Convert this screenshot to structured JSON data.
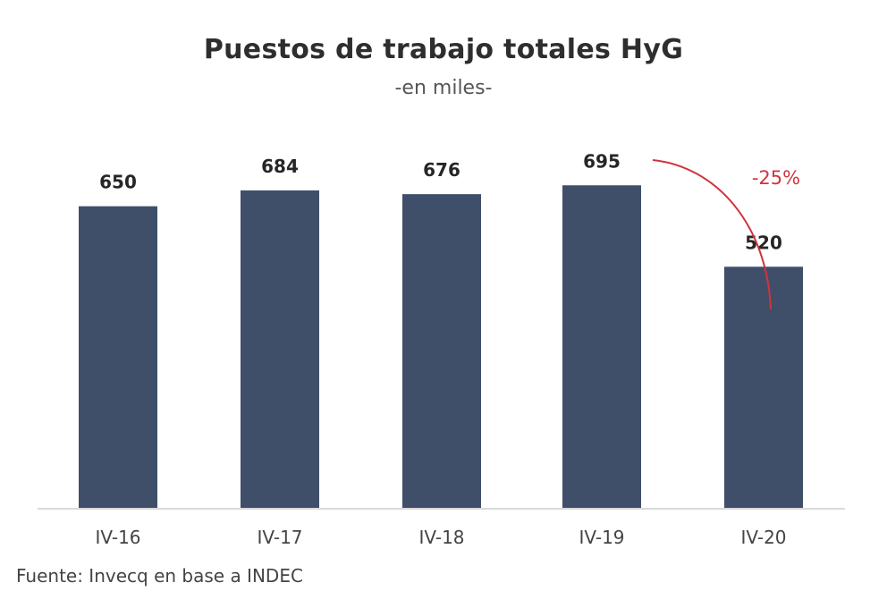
{
  "chart_data": {
    "type": "bar",
    "title": "Puestos de trabajo totales HyG",
    "subtitle": "-en miles-",
    "categories": [
      "IV-16",
      "IV-17",
      "IV-18",
      "IV-19",
      "IV-20"
    ],
    "values": [
      650,
      684,
      676,
      695,
      520
    ],
    "data_labels": [
      "650",
      "684",
      "676",
      "695",
      "520"
    ],
    "annotation": {
      "text": "-25%",
      "from_category": "IV-19",
      "to_category": "IV-20"
    },
    "ylim": [
      0,
      800
    ],
    "xlabel": "",
    "ylabel": "",
    "grid": false,
    "legend": "none",
    "source": "Fuente: Invecq en base a INDEC",
    "colors": {
      "bar": "#3f4f6a",
      "annotation": "#d0343f",
      "axis": "#d9d9d9"
    }
  }
}
